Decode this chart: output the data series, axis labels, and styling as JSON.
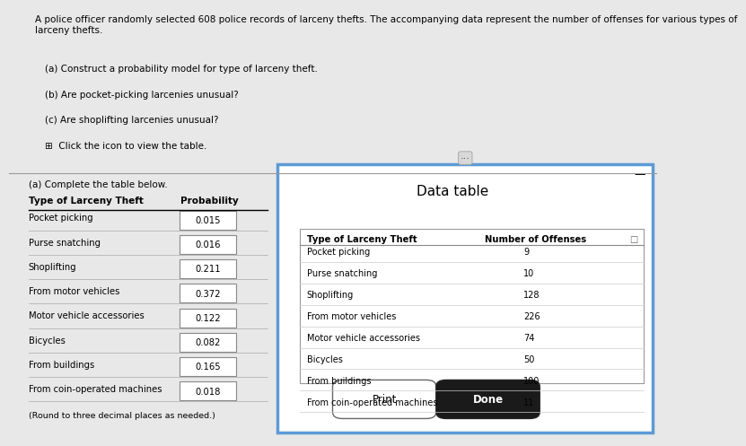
{
  "header_text": "A police officer randomly selected 608 police records of larceny thefts. The accompanying data represent the number of offenses for various types of\nlarceny thefts.",
  "questions": [
    "(a) Construct a probability model for type of larceny theft.",
    "(b) Are pocket-picking larcenies unusual?",
    "(c) Are shoplifting larcenies unusual?"
  ],
  "click_text": "Click the icon to view the table.",
  "left_table_header": "(a) Complete the table below.",
  "left_col1_header": "Type of Larceny Theft",
  "left_col2_header": "Probability",
  "left_rows": [
    [
      "Pocket picking",
      "0.015"
    ],
    [
      "Purse snatching",
      "0.016"
    ],
    [
      "Shoplifting",
      "0.211"
    ],
    [
      "From motor vehicles",
      "0.372"
    ],
    [
      "Motor vehicle accessories",
      "0.122"
    ],
    [
      "Bicycles",
      "0.082"
    ],
    [
      "From buildings",
      "0.165"
    ],
    [
      "From coin-operated machines",
      "0.018"
    ]
  ],
  "left_note": "(Round to three decimal places as needed.)",
  "right_title": "Data table",
  "right_col1_header": "Type of Larceny Theft",
  "right_col2_header": "Number of Offenses",
  "right_rows": [
    [
      "Pocket picking",
      "9"
    ],
    [
      "Purse snatching",
      "10"
    ],
    [
      "Shoplifting",
      "128"
    ],
    [
      "From motor vehicles",
      "226"
    ],
    [
      "Motor vehicle accessories",
      "74"
    ],
    [
      "Bicycles",
      "50"
    ],
    [
      "From buildings",
      "100"
    ],
    [
      "From coin-operated machines",
      "11"
    ]
  ],
  "print_btn": "Print",
  "done_btn": "Done",
  "bg_color": "#e8e8e8",
  "white": "#ffffff",
  "panel_border": "#5b9bd5",
  "text_color": "#000000",
  "done_btn_bg": "#1a1a1a",
  "done_btn_fg": "#ffffff",
  "print_btn_bg": "#ffffff",
  "print_btn_fg": "#000000"
}
